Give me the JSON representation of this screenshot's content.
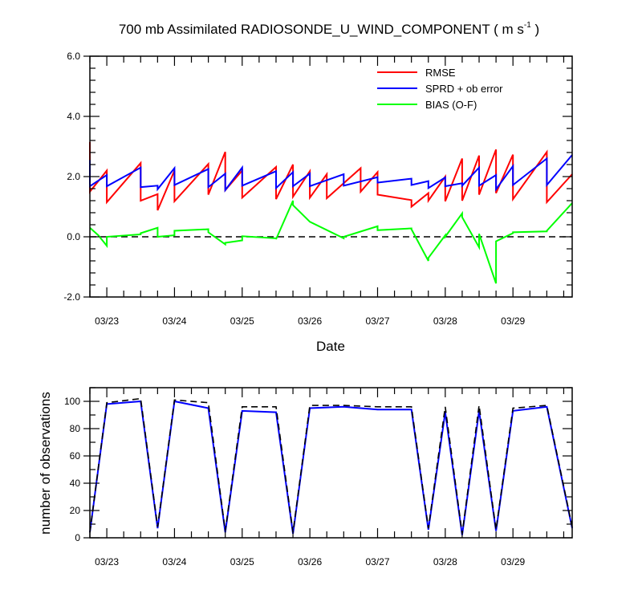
{
  "chart_data": [
    {
      "type": "line",
      "title": "700 mb Assimilated RADIOSONDE_U_WIND_COMPONENT ( m s",
      "title_superscript": "-1",
      "title_suffix": " )",
      "xlabel": "Date",
      "ylabel": "",
      "x_tick_labels": [
        "03/23",
        "03/24",
        "03/25",
        "03/26",
        "03/27",
        "03/28",
        "03/29"
      ],
      "y_tick_labels": [
        "6.0",
        "4.0",
        "2.0",
        "0.0",
        "-2.0"
      ],
      "xlim": [
        0,
        28.5
      ],
      "ylim": [
        -2.0,
        6.0
      ],
      "grid": false,
      "legend_position": "top-right",
      "series": [
        {
          "name": "RMSE",
          "color": "#ff0000",
          "x": [
            0.0,
            0.0,
            1.0,
            1.0,
            3.0,
            3.0,
            4.0,
            4.0,
            5.0,
            5.0,
            7.0,
            7.0,
            8.0,
            8.0,
            9.0,
            9.0,
            11.0,
            11.0,
            12.0,
            12.0,
            13.0,
            13.0,
            14.0,
            14.0,
            16.0,
            16.0,
            17.0,
            17.0,
            19.0,
            19.0,
            20.0,
            20.0,
            21.0,
            21.0,
            22.0,
            22.0,
            23.0,
            23.0,
            24.0,
            24.0,
            25.0,
            25.0,
            27.0,
            27.0,
            28.5
          ],
          "y": [
            3.15,
            1.5,
            2.2,
            1.15,
            2.45,
            1.2,
            1.42,
            0.88,
            2.2,
            1.18,
            2.42,
            1.4,
            2.82,
            1.55,
            2.2,
            1.3,
            2.32,
            1.25,
            2.4,
            1.33,
            2.18,
            1.3,
            2.08,
            1.28,
            2.28,
            1.5,
            2.15,
            1.4,
            1.22,
            1.0,
            1.45,
            1.2,
            2.0,
            1.18,
            2.6,
            1.2,
            2.7,
            1.4,
            2.9,
            1.45,
            2.73,
            1.25,
            2.82,
            1.15,
            2.08
          ]
        },
        {
          "name": "SPRD + ob error",
          "color": "#0000ff",
          "x": [
            0.0,
            0.0,
            1.0,
            1.0,
            3.0,
            3.0,
            4.0,
            4.0,
            5.0,
            5.0,
            7.0,
            7.0,
            8.0,
            8.0,
            9.0,
            9.0,
            11.0,
            11.0,
            12.0,
            12.0,
            13.0,
            13.0,
            15.0,
            15.0,
            17.0,
            17.0,
            19.0,
            19.0,
            20.0,
            20.0,
            21.0,
            21.0,
            22.0,
            22.0,
            23.0,
            23.0,
            24.0,
            24.0,
            25.0,
            25.0,
            27.0,
            27.0,
            28.5
          ],
          "y": [
            2.55,
            1.68,
            2.05,
            1.68,
            2.3,
            1.65,
            1.7,
            1.58,
            2.28,
            1.72,
            2.25,
            1.65,
            2.1,
            1.55,
            2.3,
            1.7,
            2.18,
            1.62,
            2.15,
            1.68,
            2.1,
            1.68,
            2.08,
            1.7,
            1.98,
            1.8,
            1.93,
            1.72,
            1.85,
            1.62,
            1.97,
            1.68,
            1.78,
            1.7,
            2.3,
            1.7,
            2.05,
            1.58,
            2.35,
            1.72,
            2.6,
            1.72,
            2.72
          ]
        },
        {
          "name": "BIAS (O-F)",
          "color": "#00ff00",
          "x": [
            0.0,
            0.5,
            1.0,
            1.0,
            3.0,
            3.0,
            4.0,
            4.0,
            5.0,
            5.0,
            7.0,
            7.0,
            8.0,
            8.0,
            9.0,
            9.0,
            11.0,
            11.0,
            12.0,
            12.0,
            13.0,
            15.0,
            15.0,
            17.0,
            17.0,
            19.0,
            19.0,
            20.0,
            20.0,
            21.0,
            21.0,
            22.0,
            22.0,
            23.0,
            23.0,
            24.0,
            24.0,
            25.0,
            25.0,
            27.0,
            27.0,
            28.5
          ],
          "y": [
            0.3,
            0.05,
            -0.3,
            0.0,
            0.08,
            0.12,
            0.3,
            0.0,
            0.05,
            0.2,
            0.25,
            0.15,
            -0.25,
            -0.2,
            -0.12,
            0.02,
            -0.05,
            -0.08,
            1.2,
            1.05,
            0.5,
            -0.05,
            0.0,
            0.35,
            0.22,
            0.28,
            0.25,
            -0.8,
            -0.7,
            0.05,
            0.0,
            0.78,
            0.65,
            -0.35,
            0.1,
            -1.55,
            -0.15,
            0.12,
            0.15,
            0.18,
            0.2,
            1.12
          ]
        }
      ],
      "reference_line": {
        "y": 0.0,
        "style": "dashed",
        "color": "#000000"
      }
    },
    {
      "type": "line",
      "title": "",
      "xlabel": "",
      "ylabel": "number of observations",
      "x_tick_labels": [
        "03/23",
        "03/24",
        "03/25",
        "03/26",
        "03/27",
        "03/28",
        "03/29"
      ],
      "y_tick_labels": [
        "100",
        "80",
        "60",
        "40",
        "20",
        "0"
      ],
      "xlim": [
        0,
        28.5
      ],
      "ylim": [
        0,
        110
      ],
      "grid": false,
      "legend_position": "none",
      "series": [
        {
          "color": "#0000ff",
          "x": [
            0.0,
            1.0,
            3.0,
            4.0,
            5.0,
            7.0,
            8.0,
            9.0,
            11.0,
            12.0,
            13.0,
            15.0,
            17.0,
            19.0,
            20.0,
            21.0,
            22.0,
            23.0,
            24.0,
            25.0,
            27.0,
            28.5
          ],
          "y": [
            4,
            98,
            100,
            7,
            100,
            95,
            4,
            93,
            92,
            3,
            95,
            96,
            94,
            94,
            6,
            92,
            2,
            93,
            5,
            93,
            96,
            7
          ]
        },
        {
          "color": "#000000",
          "style": "dashed",
          "x": [
            0.0,
            1.0,
            3.0,
            4.0,
            5.0,
            7.0,
            8.0,
            9.0,
            11.0,
            12.0,
            13.0,
            15.0,
            17.0,
            19.0,
            20.0,
            21.0,
            22.0,
            23.0,
            24.0,
            25.0,
            27.0,
            28.5
          ],
          "y": [
            4,
            99,
            102,
            8,
            101,
            99,
            5,
            96,
            96,
            4,
            97,
            97,
            96,
            96,
            7,
            96,
            3,
            97,
            6,
            95,
            97,
            8
          ]
        }
      ]
    }
  ]
}
